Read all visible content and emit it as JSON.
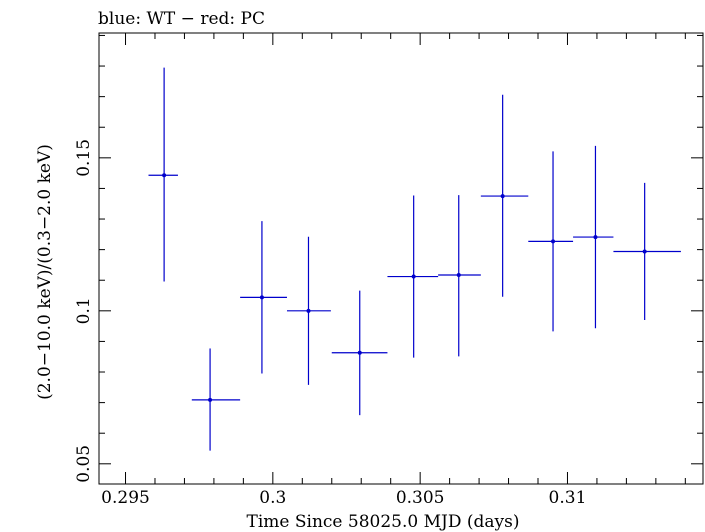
{
  "chart_data": {
    "type": "scatter",
    "title": "blue: WT − red: PC",
    "xlabel": "Time Since 58025.0 MJD (days)",
    "ylabel": "(2.0−10.0 keV)/(0.3−2.0 keV)",
    "xlim": [
      0.2941,
      0.3146
    ],
    "ylim": [
      0.0434,
      0.1908
    ],
    "x_ticks": [
      0.295,
      0.3,
      0.305,
      0.31
    ],
    "x_tick_labels": [
      "0.295",
      "0.3",
      "0.305",
      "0.31"
    ],
    "y_ticks": [
      0.05,
      0.1,
      0.15
    ],
    "y_tick_labels": [
      "0.05",
      "0.1",
      "0.15"
    ],
    "grid": false,
    "series": [
      {
        "color": "#0000cc",
        "points": [
          {
            "x": 0.29631,
            "xlo": 0.29578,
            "xhi": 0.29678,
            "y": 0.1443,
            "ylo": 0.1096,
            "yhi": 0.1795
          },
          {
            "x": 0.29787,
            "xlo": 0.29725,
            "xhi": 0.29889,
            "y": 0.0709,
            "ylo": 0.0543,
            "yhi": 0.0877
          },
          {
            "x": 0.29963,
            "xlo": 0.29889,
            "xhi": 0.30048,
            "y": 0.1044,
            "ylo": 0.0795,
            "yhi": 0.1293
          },
          {
            "x": 0.30121,
            "xlo": 0.30048,
            "xhi": 0.30197,
            "y": 0.1,
            "ylo": 0.0758,
            "yhi": 0.1242
          },
          {
            "x": 0.30295,
            "xlo": 0.302,
            "xhi": 0.30389,
            "y": 0.0863,
            "ylo": 0.0659,
            "yhi": 0.1066
          },
          {
            "x": 0.30478,
            "xlo": 0.30389,
            "xhi": 0.30561,
            "y": 0.1112,
            "ylo": 0.0847,
            "yhi": 0.1377
          },
          {
            "x": 0.30631,
            "xlo": 0.30561,
            "xhi": 0.30706,
            "y": 0.1117,
            "ylo": 0.0851,
            "yhi": 0.1378
          },
          {
            "x": 0.3078,
            "xlo": 0.30706,
            "xhi": 0.30867,
            "y": 0.1375,
            "ylo": 0.1046,
            "yhi": 0.1706
          },
          {
            "x": 0.30951,
            "xlo": 0.30867,
            "xhi": 0.31019,
            "y": 0.1227,
            "ylo": 0.0933,
            "yhi": 0.1521
          },
          {
            "x": 0.31095,
            "xlo": 0.31019,
            "xhi": 0.31156,
            "y": 0.1241,
            "ylo": 0.0943,
            "yhi": 0.1539
          },
          {
            "x": 0.31262,
            "xlo": 0.31156,
            "xhi": 0.31385,
            "y": 0.1194,
            "ylo": 0.097,
            "yhi": 0.1418
          }
        ]
      }
    ]
  }
}
